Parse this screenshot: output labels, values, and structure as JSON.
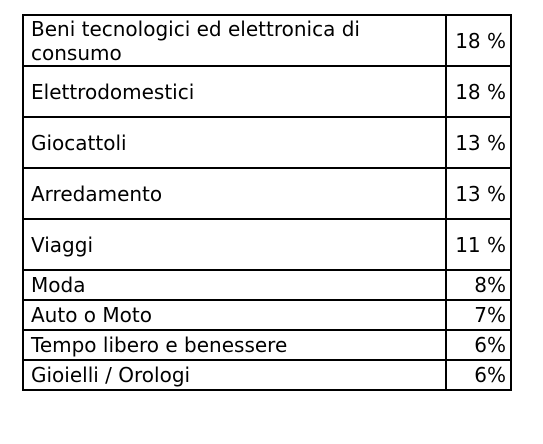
{
  "table": {
    "rows": [
      {
        "label": "Beni tecnologici ed elettronica di consumo",
        "value": "18 %"
      },
      {
        "label": "Elettrodomestici",
        "value": "18 %"
      },
      {
        "label": "Giocattoli",
        "value": "13 %"
      },
      {
        "label": "Arredamento",
        "value": "13 %"
      },
      {
        "label": "Viaggi",
        "value": "11 %"
      },
      {
        "label": "Moda",
        "value": "8%"
      },
      {
        "label": "Auto o Moto",
        "value": "7%"
      },
      {
        "label": "Tempo libero e benessere",
        "value": "6%"
      },
      {
        "label": "Gioielli / Orologi",
        "value": "6%"
      }
    ]
  }
}
